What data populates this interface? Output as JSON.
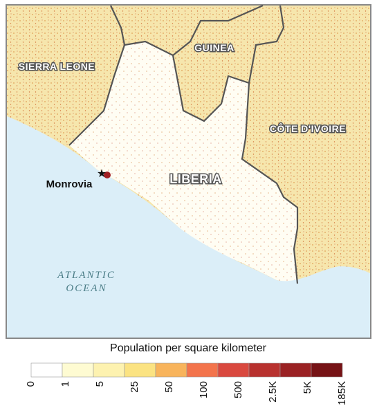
{
  "map": {
    "labels": {
      "sierra_leone": "SIERRA LEONE",
      "guinea": "GUINEA",
      "cote_divoire": "CÔTE D'IVOIRE",
      "liberia": "LIBERIA",
      "monrovia": "Monrovia",
      "ocean_1": "ATLANTIC",
      "ocean_2": "OCEAN"
    }
  },
  "legend": {
    "title": "Population per square kilometer",
    "ticks": [
      "0",
      "1",
      "5",
      "25",
      "50",
      "100",
      "500",
      "2.5K",
      "5K",
      "185K"
    ],
    "colors": [
      "#ffffff",
      "#fefbd2",
      "#fdf2b0",
      "#fbe382",
      "#f8b45c",
      "#f3744c",
      "#d9493f",
      "#b8322f",
      "#9a2224",
      "#761316"
    ]
  }
}
